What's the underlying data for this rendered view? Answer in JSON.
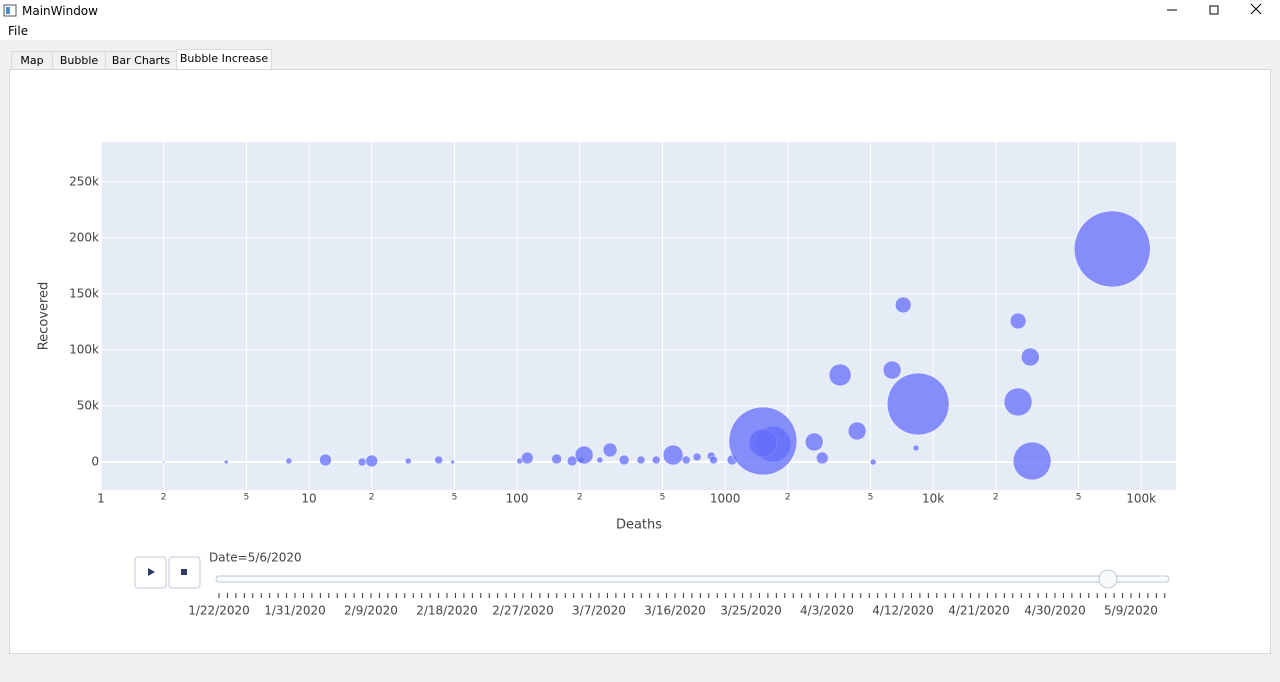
{
  "window": {
    "title": "MainWindow",
    "menu": [
      "File"
    ],
    "tabs": [
      "Map",
      "Bubble",
      "Bar Charts",
      "Bubble Increase"
    ],
    "active_tab": "Bubble Increase"
  },
  "chart_data": {
    "type": "scatter",
    "x_label": "Deaths",
    "y_label": "Recovered",
    "color": "#636efa",
    "log_x": true,
    "grid": true,
    "xlim": [
      1,
      147000
    ],
    "ylim": [
      -25000,
      285700
    ],
    "xticks": [
      1,
      2,
      5,
      10,
      {
        "value": 20,
        "label": "2"
      },
      {
        "value": 50,
        "label": "5"
      },
      100,
      {
        "value": 200,
        "label": "2"
      },
      {
        "value": 500,
        "label": "5"
      },
      1000,
      {
        "value": 2000,
        "label": "2"
      },
      {
        "value": 5000,
        "label": "5"
      },
      {
        "value": 10000,
        "label": "10k"
      },
      {
        "value": 20000,
        "label": "2"
      },
      {
        "value": 50000,
        "label": "5"
      },
      {
        "value": 100000,
        "label": "100k"
      }
    ],
    "yticks": [
      0,
      {
        "value": 50000,
        "label": "50k"
      },
      {
        "value": 100000,
        "label": "100k"
      },
      {
        "value": 150000,
        "label": "150k"
      },
      {
        "value": 200000,
        "label": "200k"
      },
      {
        "value": 250000,
        "label": "250k"
      }
    ],
    "x": [
      2,
      4,
      8,
      12,
      18,
      20,
      30,
      42,
      49,
      103,
      112,
      155,
      184,
      203,
      210,
      250,
      280,
      327,
      394,
      466,
      562,
      650,
      733,
      857,
      880,
      1080,
      1900,
      2680,
      2930,
      3570,
      4310,
      5150,
      6350,
      7180,
      8280,
      25600,
      25600,
      29300,
      1700,
      1520,
      1520,
      29900,
      8470,
      72600
    ],
    "y": [
      0,
      0,
      900,
      1800,
      0,
      900,
      900,
      1800,
      0,
      900,
      3600,
      2700,
      900,
      1800,
      6250,
      1800,
      10700,
      1800,
      1800,
      1800,
      6250,
      1800,
      4500,
      5400,
      1800,
      1800,
      25000,
      17900,
      3600,
      77700,
      27700,
      0,
      82100,
      140200,
      12500,
      125900,
      53600,
      93750,
      16000,
      17000,
      18750,
      900,
      51800,
      190200
    ],
    "sizes": [
      1,
      2,
      3,
      6,
      4,
      6,
      3,
      4,
      2,
      3,
      6,
      5,
      5,
      3,
      9,
      3,
      7,
      5,
      4,
      4,
      10,
      4,
      4,
      4,
      4,
      5,
      2,
      9,
      6,
      11,
      9,
      3,
      9,
      8,
      3,
      8,
      14,
      9,
      18,
      14,
      34,
      19,
      31,
      38
    ]
  },
  "slider": {
    "label": "Date=5/6/2020",
    "tick_labels": [
      "1/22/2020",
      "1/31/2020",
      "2/9/2020",
      "2/18/2020",
      "2/27/2020",
      "3/7/2020",
      "3/16/2020",
      "3/25/2020",
      "4/3/2020",
      "4/12/2020",
      "4/21/2020",
      "4/30/2020",
      "5/9/2020"
    ]
  }
}
